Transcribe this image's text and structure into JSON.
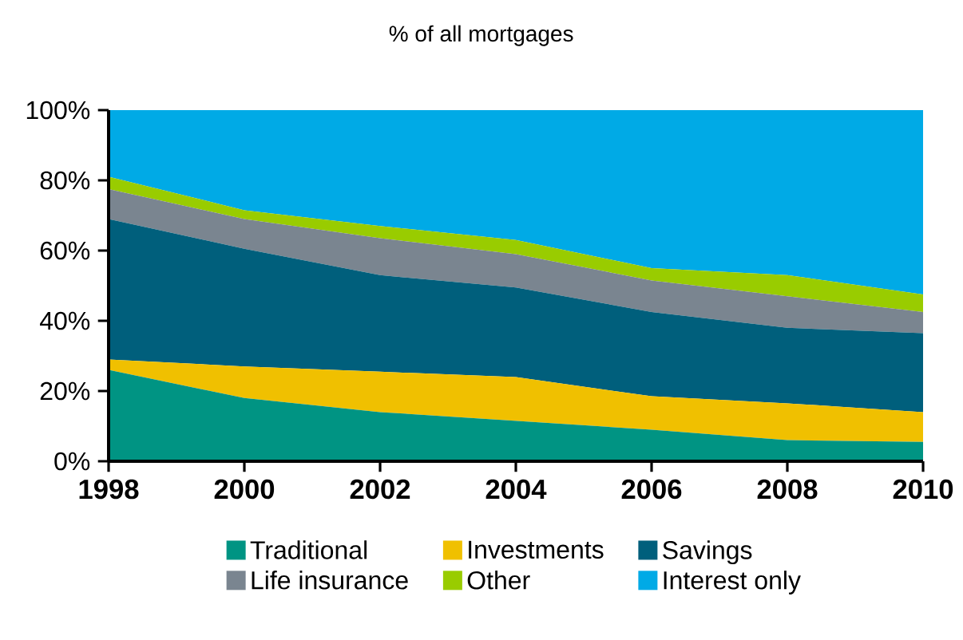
{
  "chart_data": {
    "type": "area",
    "stacked": true,
    "title": "% of all mortgages",
    "x": [
      1998,
      2000,
      2002,
      2004,
      2006,
      2008,
      2010
    ],
    "series": [
      {
        "name": "Traditional",
        "color": "#009483",
        "values": [
          26,
          18,
          14,
          11.5,
          9,
          6,
          5.5
        ]
      },
      {
        "name": "Investments",
        "color": "#f0c000",
        "values": [
          3,
          9,
          11.5,
          12.5,
          9.5,
          10.5,
          8.5
        ]
      },
      {
        "name": "Savings",
        "color": "#005f7c",
        "values": [
          40,
          33.5,
          27.5,
          25.5,
          24,
          21.5,
          22.5
        ]
      },
      {
        "name": "Life insurance",
        "color": "#7a8590",
        "values": [
          8.5,
          8.5,
          10.5,
          9.5,
          9,
          9,
          6
        ]
      },
      {
        "name": "Other",
        "color": "#99cc00",
        "values": [
          3.5,
          2.5,
          3.5,
          4,
          3.5,
          6,
          5
        ]
      },
      {
        "name": "Interest only",
        "color": "#00aae6",
        "values": [
          19,
          28.5,
          33,
          37,
          45,
          47,
          52.5
        ]
      }
    ],
    "xlim": [
      1998,
      2010
    ],
    "xticks": [
      1998,
      2000,
      2002,
      2004,
      2006,
      2008,
      2010
    ],
    "ylim": [
      0,
      100
    ],
    "yticks": [
      {
        "value": 0,
        "label": "0%"
      },
      {
        "value": 20,
        "label": "20%"
      },
      {
        "value": 40,
        "label": "40%"
      },
      {
        "value": 60,
        "label": "60%"
      },
      {
        "value": 80,
        "label": "80%"
      },
      {
        "value": 100,
        "label": "100%"
      }
    ],
    "grid": false,
    "legend": "bottom"
  }
}
